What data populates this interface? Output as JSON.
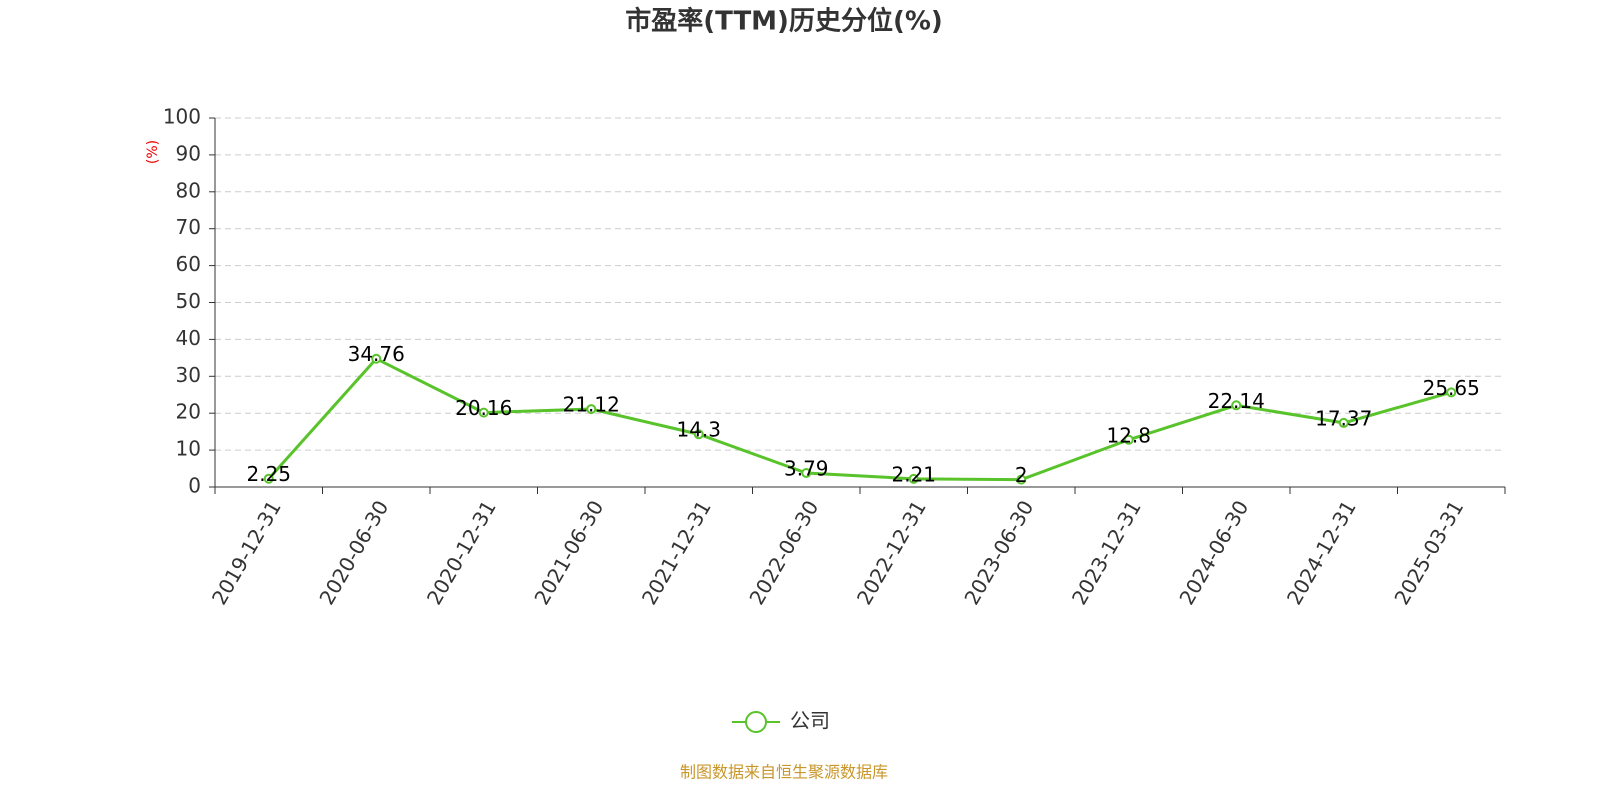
{
  "chart_data": {
    "type": "line",
    "title": "市盈率(TTM)历史分位(%)",
    "y_label": "(%)",
    "categories": [
      "2019-12-31",
      "2020-06-30",
      "2020-12-31",
      "2021-06-30",
      "2021-12-31",
      "2022-06-30",
      "2022-12-31",
      "2023-06-30",
      "2023-12-31",
      "2024-06-30",
      "2024-12-31",
      "2025-03-31"
    ],
    "series": [
      {
        "name": "公司",
        "color": "#58c32a",
        "values": [
          2.25,
          34.76,
          20.16,
          21.12,
          14.3,
          3.79,
          2.21,
          2,
          12.8,
          22.14,
          17.37,
          25.65
        ]
      }
    ],
    "ylim": [
      0,
      100
    ],
    "yticks": [
      0,
      10,
      20,
      30,
      40,
      50,
      60,
      70,
      80,
      90,
      100
    ],
    "grid": true,
    "legend": "bottom",
    "source": "制图数据来自恒生聚源数据库"
  }
}
